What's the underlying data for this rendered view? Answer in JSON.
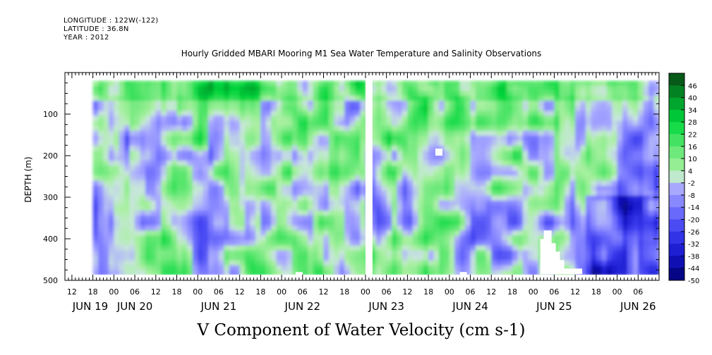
{
  "header": {
    "longitude": "LONGITUDE : 122W(-122)",
    "latitude": "LATITUDE : 36.8N",
    "year": "YEAR : 2012",
    "title": "Hourly Gridded MBARI Mooring M1 Sea Water Temperature and Salinity Observations"
  },
  "chart_data": {
    "type": "heatmap",
    "title": "Hourly Gridded MBARI Mooring M1 Sea Water Temperature and Salinity Observations",
    "xlabel": "V Component of Water Velocity (cm s-1)",
    "ylabel": "DEPTH (m)",
    "x_range": [
      "2012-06-19T10:00",
      "2012-06-26T12:00"
    ],
    "ylim": [
      500,
      0
    ],
    "y_ticks": [
      100,
      200,
      300,
      400,
      500
    ],
    "x_hour_labels": [
      "12",
      "18",
      "00",
      "06",
      "12",
      "18",
      "00",
      "06",
      "12",
      "18",
      "00",
      "06",
      "12",
      "18",
      "00",
      "06",
      "12",
      "18",
      "00",
      "06",
      "12",
      "18",
      "00",
      "06",
      "12",
      "18",
      "00",
      "06"
    ],
    "x_day_labels": [
      "JUN 19",
      "JUN 20",
      "JUN 21",
      "JUN 22",
      "JUN 23",
      "JUN 24",
      "JUN 25",
      "JUN 26"
    ],
    "colorbar": {
      "levels": [
        46,
        40,
        34,
        28,
        22,
        16,
        10,
        4,
        -2,
        -8,
        -14,
        -20,
        -26,
        -32,
        -38,
        -44,
        -50
      ],
      "range": [
        -50,
        52
      ]
    },
    "data_extent": {
      "depth_min": 20,
      "depth_max": 485
    },
    "data_gap": [
      "2012-06-23T00:00",
      "2012-06-23T02:00"
    ],
    "missing_patch": {
      "time_start": "2012-06-25T02:00",
      "time_end": "2012-06-25T14:00",
      "depth_top": 380
    }
  },
  "colors": {
    "strong_positive": "#0a4a14",
    "positive": "#00e040",
    "weak_positive": "#a8f0a0",
    "weak_negative": "#a8a8ff",
    "negative": "#3030e0",
    "strong_negative": "#00006c"
  }
}
